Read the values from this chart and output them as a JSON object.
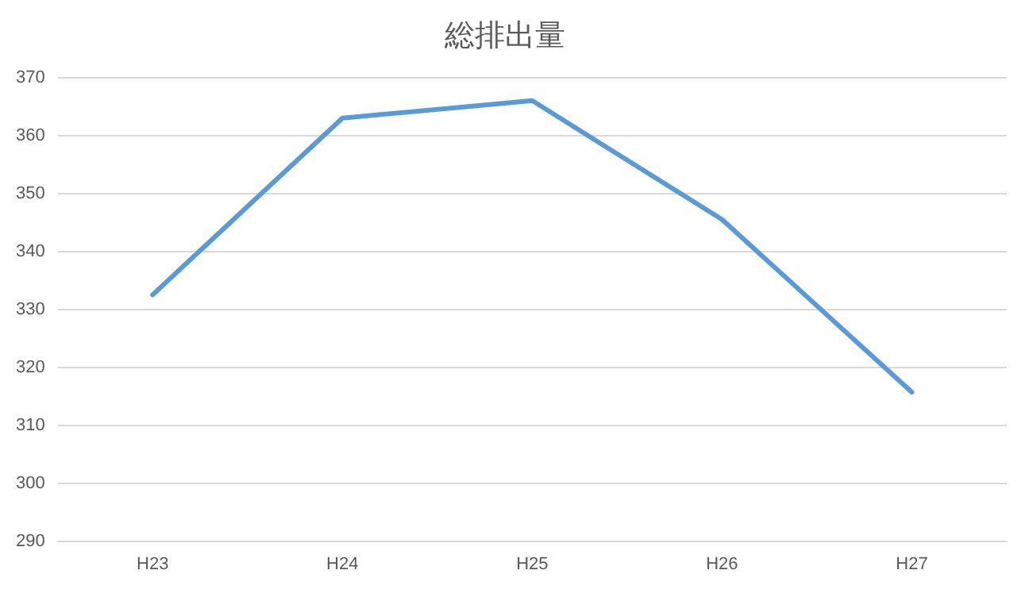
{
  "chart_data": {
    "type": "line",
    "title": "総排出量",
    "categories": [
      "H23",
      "H24",
      "H25",
      "H26",
      "H27"
    ],
    "series": [
      {
        "color": "#5b9bd5",
        "values": [
          332.5,
          363,
          366,
          345.5,
          315.7
        ]
      }
    ],
    "ylim": [
      290,
      370
    ],
    "yticks": [
      290,
      300,
      310,
      320,
      330,
      340,
      350,
      360,
      370
    ],
    "grid": "y",
    "legend": false,
    "marker": "none",
    "line_style": "solid"
  }
}
